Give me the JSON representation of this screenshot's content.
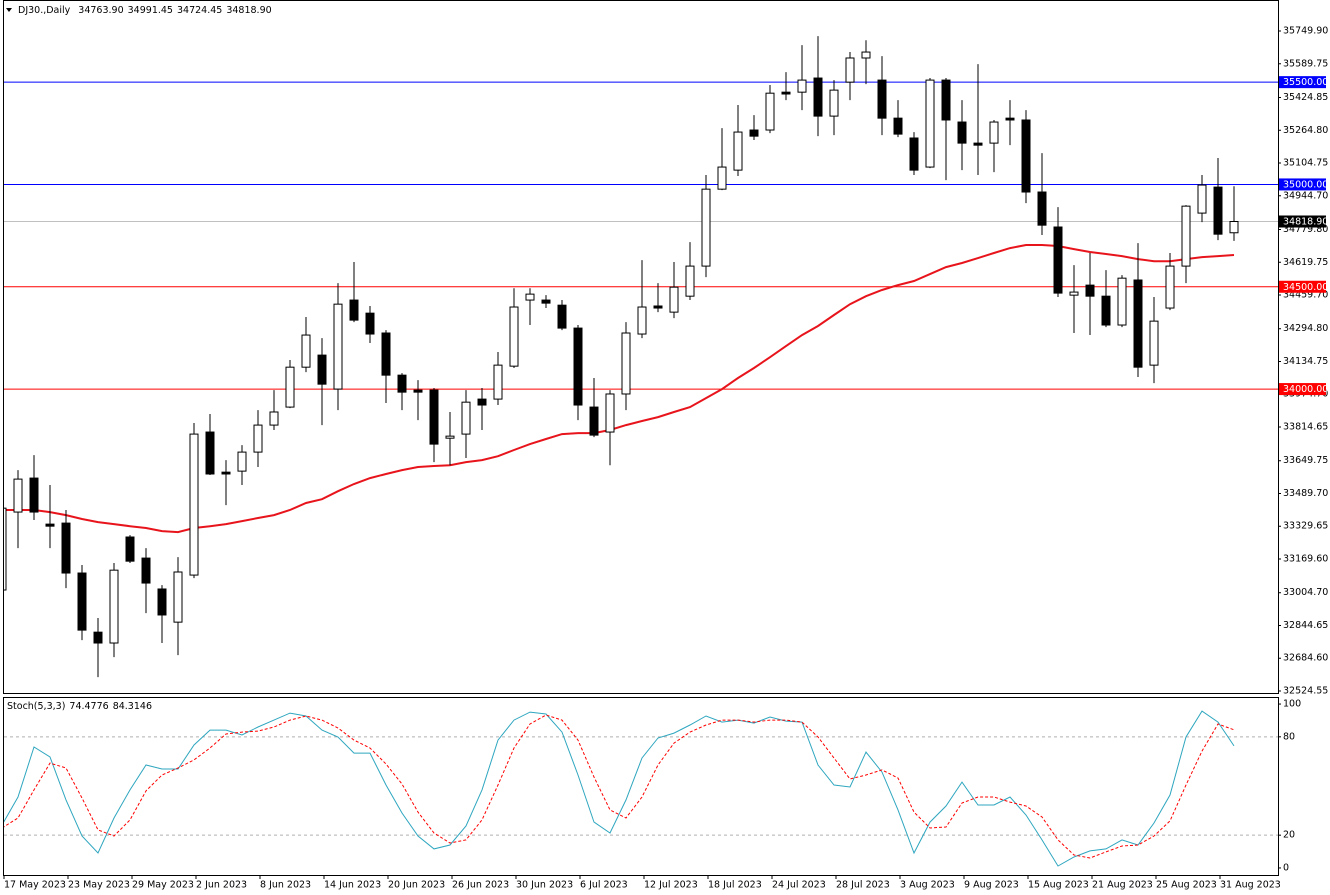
{
  "chart_data": [
    {
      "type": "candlestick",
      "title": "DJ30.,Daily",
      "title_values": [
        "34763.90",
        "34991.45",
        "34724.45",
        "34818.90"
      ],
      "categories": [
        null,
        "17 May 2023",
        null,
        null,
        null,
        "23 May 2023",
        null,
        null,
        null,
        "29 May 2023",
        null,
        null,
        null,
        "2 Jun 2023",
        null,
        null,
        null,
        "8 Jun 2023",
        null,
        null,
        null,
        "14 Jun 2023",
        null,
        null,
        null,
        "20 Jun 2023",
        null,
        null,
        null,
        "26 Jun 2023",
        null,
        null,
        null,
        "30 Jun 2023",
        null,
        null,
        null,
        "6 Jul 2023",
        null,
        null,
        null,
        "12 Jul 2023",
        null,
        null,
        null,
        "18 Jul 2023",
        null,
        null,
        null,
        "24 Jul 2023",
        null,
        null,
        null,
        "28 Jul 2023",
        null,
        null,
        null,
        "3 Aug 2023",
        null,
        null,
        null,
        "9 Aug 2023",
        null,
        null,
        null,
        "15 Aug 2023",
        null,
        null,
        null,
        "21 Aug 2023",
        null,
        null,
        null,
        "25 Aug 2023",
        null,
        null,
        null,
        "31 Aug 2023"
      ],
      "open": [
        33018,
        33399,
        33565,
        33340,
        33345,
        33101,
        32812,
        32759,
        33277,
        33174,
        33023,
        32861,
        33091,
        33790,
        33594,
        33599,
        33692,
        33824,
        33912,
        34107,
        34166,
        34000,
        34435,
        34371,
        34274,
        34068,
        33995,
        33995,
        33760,
        33780,
        33951,
        33951,
        34112,
        34435,
        34435,
        34410,
        34298,
        33912,
        33790,
        33976,
        34269,
        34406,
        34376,
        34454,
        34601,
        34977,
        35070,
        35266,
        35266,
        35451,
        35451,
        35520,
        35334,
        35500,
        35618,
        35510,
        35324,
        35227,
        35085,
        35510,
        35305,
        35202,
        35202,
        35324,
        35315,
        34963,
        34792,
        34459,
        34508,
        34454,
        34313,
        34533,
        34117,
        34396,
        34601,
        34860,
        34987,
        34763.9
      ],
      "high": [
        33433,
        33604,
        33677,
        33531,
        33409,
        33140,
        32881,
        33150,
        33286,
        33223,
        33042,
        33179,
        33834,
        33878,
        33653,
        33726,
        33897,
        33995,
        34142,
        34352,
        34249,
        34518,
        34621,
        34406,
        34288,
        34078,
        34044,
        34005,
        33888,
        33995,
        34005,
        34181,
        34493,
        34493,
        34459,
        34435,
        34313,
        34054,
        33995,
        34327,
        34630,
        34518,
        34621,
        34718,
        35046,
        35275,
        35388,
        35339,
        35486,
        35549,
        35681,
        35725,
        35510,
        35647,
        35705,
        35627,
        35412,
        35256,
        35520,
        35520,
        35412,
        35588,
        35315,
        35412,
        35363,
        35153,
        34889,
        34606,
        34665,
        34581,
        34557,
        34713,
        34450,
        34665,
        34899,
        35046,
        35129,
        34991.45
      ],
      "low": [
        33008,
        33223,
        33360,
        33223,
        33027,
        32773,
        32592,
        32690,
        33150,
        32905,
        32759,
        32700,
        33076,
        33580,
        33433,
        33531,
        33619,
        33800,
        33907,
        34083,
        33824,
        33897,
        34327,
        34225,
        33932,
        33897,
        33848,
        33643,
        33628,
        33663,
        33800,
        33922,
        34103,
        34313,
        34396,
        34288,
        33848,
        33765,
        33628,
        33897,
        34249,
        34376,
        34347,
        34435,
        34547,
        34972,
        35041,
        35217,
        35251,
        35412,
        35363,
        35236,
        35241,
        35412,
        35490,
        35241,
        35231,
        35046,
        35080,
        35021,
        35070,
        35046,
        35060,
        35192,
        34909,
        34753,
        34450,
        34274,
        34264,
        34303,
        34303,
        34059,
        34029,
        34386,
        34518,
        34816,
        34728,
        34724.45
      ],
      "close": [
        33418,
        33560,
        33399,
        33330,
        33101,
        32822,
        32759,
        33115,
        33159,
        33052,
        32896,
        33106,
        33780,
        33585,
        33585,
        33692,
        33824,
        33888,
        34107,
        34264,
        34024,
        34415,
        34337,
        34269,
        34068,
        33985,
        33985,
        33731,
        33770,
        33936,
        33922,
        34117,
        34401,
        34464,
        34420,
        34298,
        33922,
        33775,
        33976,
        34274,
        34401,
        34396,
        34498,
        34601,
        34977,
        35085,
        35256,
        35236,
        35446,
        35442,
        35510,
        35334,
        35461,
        35618,
        35647,
        35324,
        35246,
        35070,
        35510,
        35315,
        35202,
        35192,
        35305,
        35315,
        34963,
        34801,
        34469,
        34474,
        34454,
        34313,
        34542,
        34107,
        34332,
        34601,
        34894,
        34997,
        34757,
        34818.9
      ],
      "bull_color": "#ffffff",
      "bear_color": "#000000",
      "ma": {
        "color": "#e8141c",
        "values": [
          33409,
          33409,
          33409,
          33399,
          33384,
          33365,
          33350,
          33340,
          33330,
          33321,
          33306,
          33301,
          33321,
          33330,
          33340,
          33355,
          33370,
          33384,
          33409,
          33443,
          33462,
          33501,
          33536,
          33565,
          33585,
          33604,
          33619,
          33624,
          33628,
          33643,
          33653,
          33672,
          33702,
          33731,
          33756,
          33780,
          33785,
          33785,
          33800,
          33824,
          33844,
          33863,
          33888,
          33912,
          33956,
          34000,
          34054,
          34103,
          34156,
          34210,
          34264,
          34308,
          34362,
          34415,
          34454,
          34484,
          34508,
          34528,
          34562,
          34596,
          34616,
          34640,
          34665,
          34689,
          34704,
          34704,
          34699,
          34684,
          34670,
          34660,
          34650,
          34635,
          34625,
          34625,
          34635,
          34645,
          34650,
          34655
        ]
      },
      "levels": [
        {
          "value": 35500,
          "label": "35500.00",
          "color": "#0000ff"
        },
        {
          "value": 35000,
          "label": "35000.00",
          "color": "#0000ff"
        },
        {
          "value": 34500,
          "label": "34500.00",
          "color": "#ff0000"
        },
        {
          "value": 34000,
          "label": "34000.00",
          "color": "#ff0000"
        }
      ],
      "price_line": {
        "value": 34818.9,
        "label": "34818.90",
        "color": "#c0c0c0"
      },
      "ylim": [
        32514.7,
        35901.4
      ],
      "yticks": [
        {
          "value": 35749.9,
          "label": "35749.90"
        },
        {
          "value": 35589.75,
          "label": "35589.75"
        },
        {
          "value": 35424.85,
          "label": "35424.85"
        },
        {
          "value": 35264.8,
          "label": "35264.80"
        },
        {
          "value": 35104.75,
          "label": "35104.75"
        },
        {
          "value": 34944.7,
          "label": "34944.70"
        },
        {
          "value": 34779.8,
          "label": "34779.80"
        },
        {
          "value": 34619.75,
          "label": "34619.75"
        },
        {
          "value": 34459.7,
          "label": "34459.70"
        },
        {
          "value": 34294.8,
          "label": "34294.80"
        },
        {
          "value": 34134.75,
          "label": "34134.75"
        },
        {
          "value": 33974.7,
          "label": "33974.70"
        },
        {
          "value": 33814.65,
          "label": "33814.65"
        },
        {
          "value": 33649.75,
          "label": "33649.75"
        },
        {
          "value": 33489.7,
          "label": "33489.70"
        },
        {
          "value": 33329.65,
          "label": "33329.65"
        },
        {
          "value": 33169.6,
          "label": "33169.60"
        },
        {
          "value": 33004.7,
          "label": "33004.70"
        },
        {
          "value": 32844.65,
          "label": "32844.65"
        },
        {
          "value": 32684.6,
          "label": "32684.60"
        },
        {
          "value": 32524.55,
          "label": "32524.55"
        }
      ]
    },
    {
      "type": "line",
      "title": "Stoch(5,3,3)",
      "series": [
        {
          "color": "#2ea6bf",
          "style": "solid",
          "values": [
            26.2,
            43.3,
            73.8,
            67.7,
            41.5,
            19.5,
            9.1,
            30.5,
            47.6,
            62.8,
            60.4,
            60.4,
            75.0,
            84.1,
            84.1,
            81.1,
            86.0,
            90.2,
            94.5,
            92.7,
            84.1,
            79.9,
            70.1,
            70.1,
            50.6,
            33.5,
            19.5,
            11.6,
            14.0,
            25.6,
            47.6,
            78.0,
            90.2,
            95.1,
            93.9,
            82.9,
            56.7,
            28.0,
            21.3,
            41.5,
            67.1,
            79.3,
            82.3,
            87.2,
            92.7,
            89.0,
            90.2,
            88.4,
            92.1,
            89.6,
            89.0,
            62.8,
            50.6,
            49.4,
            70.7,
            58.5,
            35.4,
            9.1,
            28.0,
            37.8,
            52.4,
            38.4,
            38.4,
            43.3,
            32.3,
            17.1,
            1.2,
            6.7,
            10.4,
            11.6,
            17.1,
            14.0,
            27.4,
            44.5,
            79.9,
            95.7,
            89.0,
            74.4776
          ]
        },
        {
          "color": "#ff0000",
          "style": "dashed",
          "values": [
            24.4,
            30.5,
            47.6,
            64.0,
            61.0,
            42.7,
            23.2,
            19.5,
            29.3,
            47.0,
            56.7,
            61.0,
            65.9,
            73.2,
            81.7,
            82.9,
            83.5,
            86.0,
            90.2,
            92.7,
            90.2,
            85.4,
            78.0,
            73.2,
            63.4,
            51.2,
            34.1,
            21.3,
            15.2,
            17.1,
            29.3,
            50.6,
            73.2,
            87.8,
            93.3,
            90.2,
            78.0,
            55.5,
            35.4,
            30.5,
            43.3,
            62.8,
            76.2,
            82.9,
            87.2,
            90.2,
            90.2,
            89.0,
            90.2,
            90.2,
            89.0,
            79.9,
            67.1,
            54.3,
            56.7,
            59.8,
            54.9,
            34.1,
            24.4,
            25.0,
            39.6,
            43.3,
            43.3,
            40.2,
            37.8,
            31.1,
            17.1,
            7.9,
            6.1,
            9.8,
            13.4,
            14.0,
            19.5,
            28.7,
            50.6,
            71.3,
            87.8,
            84.3146
          ]
        }
      ],
      "levels": [
        80,
        20
      ],
      "ylim": [
        -4.3,
        104.3
      ],
      "yticks": [
        100,
        80,
        20,
        0
      ]
    }
  ]
}
